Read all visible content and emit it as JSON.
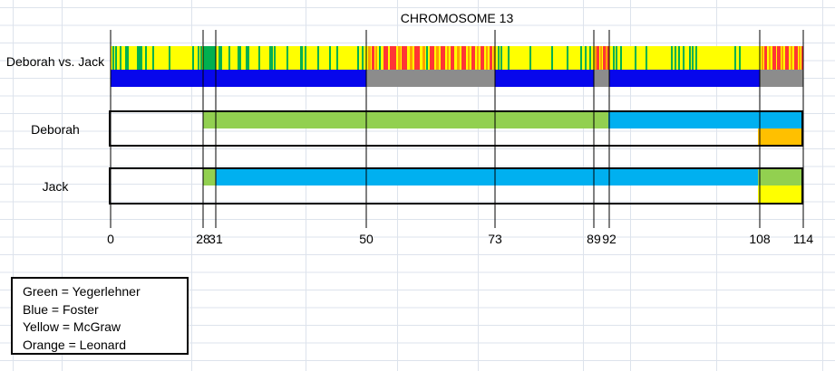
{
  "colors": {
    "yellow": "#FFFF00",
    "green": "#92D050",
    "green_dark": "#00B050",
    "cyan": "#00B0F0",
    "blue": "#0707EC",
    "gray": "#8C8C8C",
    "orange": "#FFC000",
    "red": "#FF3535",
    "orange_stripe": "#FFA000",
    "white": "#FFFFFF"
  },
  "chart_data": {
    "type": "chromosome_browser_comparison",
    "title": "CHROMOSOME 13",
    "axis_ticks": [
      0,
      28,
      31,
      50,
      73,
      89,
      92,
      108,
      114
    ],
    "axis_map_pct": [
      [
        0,
        0
      ],
      [
        28,
        13.35
      ],
      [
        31,
        15.18
      ],
      [
        50,
        36.91
      ],
      [
        73,
        55.5
      ],
      [
        89,
        69.76
      ],
      [
        92,
        71.99
      ],
      [
        108,
        93.72
      ],
      [
        114,
        100
      ]
    ],
    "legend_meaning": {
      "green": "Yegerlehner",
      "blue": "Foster",
      "yellow": "McGraw",
      "orange": "Leonard"
    },
    "rows": {
      "comparison": {
        "label": "Deborah vs. Jack",
        "stripe_bar": {
          "base_color": "yellow",
          "segments": [
            {
              "start": 0,
              "end": 28,
              "kind": "match"
            },
            {
              "start": 28,
              "end": 31,
              "kind": "solid_green"
            },
            {
              "start": 31,
              "end": 50,
              "kind": "match"
            },
            {
              "start": 50,
              "end": 73,
              "kind": "nomatch"
            },
            {
              "start": 73,
              "end": 89,
              "kind": "match"
            },
            {
              "start": 89,
              "end": 92,
              "kind": "nomatch"
            },
            {
              "start": 92,
              "end": 108,
              "kind": "match"
            },
            {
              "start": 108,
              "end": 114,
              "kind": "nomatch"
            }
          ],
          "stripes": [
            {
              "v": 0.5,
              "w": 2,
              "c": "g"
            },
            {
              "v": 1.4,
              "w": 2,
              "c": "g"
            },
            {
              "v": 2.7,
              "w": 2,
              "c": "g"
            },
            {
              "v": 4.4,
              "w": 2,
              "c": "g"
            },
            {
              "v": 4.9,
              "w": 2,
              "c": "g"
            },
            {
              "v": 8.0,
              "w": 2,
              "c": "g"
            },
            {
              "v": 8.5,
              "w": 2,
              "c": "g"
            },
            {
              "v": 9.0,
              "w": 2,
              "c": "g"
            },
            {
              "v": 10.4,
              "w": 2,
              "c": "g"
            },
            {
              "v": 12.6,
              "w": 2,
              "c": "g"
            },
            {
              "v": 17.6,
              "w": 2,
              "c": "g"
            },
            {
              "v": 24.7,
              "w": 2,
              "c": "g"
            },
            {
              "v": 26.4,
              "w": 2,
              "c": "g"
            },
            {
              "v": 27.2,
              "w": 2,
              "c": "g"
            },
            {
              "v": 31.3,
              "w": 2,
              "c": "g"
            },
            {
              "v": 31.6,
              "w": 2,
              "c": "g"
            },
            {
              "v": 32.6,
              "w": 2,
              "c": "g"
            },
            {
              "v": 33.7,
              "w": 2,
              "c": "g"
            },
            {
              "v": 34.0,
              "w": 2,
              "c": "g"
            },
            {
              "v": 34.8,
              "w": 2,
              "c": "g"
            },
            {
              "v": 35.0,
              "w": 2,
              "c": "g"
            },
            {
              "v": 36.4,
              "w": 2,
              "c": "g"
            },
            {
              "v": 37.8,
              "w": 2,
              "c": "g"
            },
            {
              "v": 38.0,
              "w": 2,
              "c": "g"
            },
            {
              "v": 38.3,
              "w": 2,
              "c": "g"
            },
            {
              "v": 39.9,
              "w": 2,
              "c": "g"
            },
            {
              "v": 41.6,
              "w": 2,
              "c": "g"
            },
            {
              "v": 41.8,
              "w": 2,
              "c": "g"
            },
            {
              "v": 42.2,
              "w": 2,
              "c": "g"
            },
            {
              "v": 43.8,
              "w": 2,
              "c": "g"
            },
            {
              "v": 45.3,
              "w": 2,
              "c": "g"
            },
            {
              "v": 46.2,
              "w": 2,
              "c": "g"
            },
            {
              "v": 48.9,
              "w": 2,
              "c": "g"
            },
            {
              "v": 49.4,
              "w": 2,
              "c": "g"
            },
            {
              "v": 50.3,
              "w": 3,
              "c": "o"
            },
            {
              "v": 51.0,
              "w": 3,
              "c": "r"
            },
            {
              "v": 51.7,
              "w": 2,
              "c": "o"
            },
            {
              "v": 52.3,
              "w": 2,
              "c": "g"
            },
            {
              "v": 53.0,
              "w": 5,
              "c": "r"
            },
            {
              "v": 54.2,
              "w": 7,
              "c": "r"
            },
            {
              "v": 55.6,
              "w": 3,
              "c": "o"
            },
            {
              "v": 56.3,
              "w": 6,
              "c": "r"
            },
            {
              "v": 57.8,
              "w": 3,
              "c": "o"
            },
            {
              "v": 58.6,
              "w": 6,
              "c": "r"
            },
            {
              "v": 60.0,
              "w": 3,
              "c": "o"
            },
            {
              "v": 60.7,
              "w": 2,
              "c": "g"
            },
            {
              "v": 61.3,
              "w": 5,
              "c": "r"
            },
            {
              "v": 62.5,
              "w": 3,
              "c": "o"
            },
            {
              "v": 63.2,
              "w": 5,
              "c": "r"
            },
            {
              "v": 64.4,
              "w": 2,
              "c": "o"
            },
            {
              "v": 65.0,
              "w": 4,
              "c": "r"
            },
            {
              "v": 66.2,
              "w": 3,
              "c": "o"
            },
            {
              "v": 67.0,
              "w": 5,
              "c": "r"
            },
            {
              "v": 68.2,
              "w": 2,
              "c": "o"
            },
            {
              "v": 68.8,
              "w": 4,
              "c": "r"
            },
            {
              "v": 69.8,
              "w": 2,
              "c": "o"
            },
            {
              "v": 70.4,
              "w": 4,
              "c": "r"
            },
            {
              "v": 71.4,
              "w": 2,
              "c": "o"
            },
            {
              "v": 72.0,
              "w": 3,
              "c": "r"
            },
            {
              "v": 72.6,
              "w": 2,
              "c": "o"
            },
            {
              "v": 73.4,
              "w": 2,
              "c": "g"
            },
            {
              "v": 73.9,
              "w": 2,
              "c": "g"
            },
            {
              "v": 75.0,
              "w": 2,
              "c": "g"
            },
            {
              "v": 78.6,
              "w": 2,
              "c": "g"
            },
            {
              "v": 82.1,
              "w": 2,
              "c": "g"
            },
            {
              "v": 84.6,
              "w": 2,
              "c": "g"
            },
            {
              "v": 86.8,
              "w": 2,
              "c": "g"
            },
            {
              "v": 87.6,
              "w": 2,
              "c": "g"
            },
            {
              "v": 88.3,
              "w": 2,
              "c": "g"
            },
            {
              "v": 89.2,
              "w": 2,
              "c": "o"
            },
            {
              "v": 89.6,
              "w": 3,
              "c": "r"
            },
            {
              "v": 90.2,
              "w": 2,
              "c": "o"
            },
            {
              "v": 90.7,
              "w": 3,
              "c": "r"
            },
            {
              "v": 91.3,
              "w": 2,
              "c": "o"
            },
            {
              "v": 91.7,
              "w": 2,
              "c": "r"
            },
            {
              "v": 92.4,
              "w": 2,
              "c": "g"
            },
            {
              "v": 92.7,
              "w": 2,
              "c": "g"
            },
            {
              "v": 93.2,
              "w": 2,
              "c": "g"
            },
            {
              "v": 94.7,
              "w": 2,
              "c": "g"
            },
            {
              "v": 95.9,
              "w": 2,
              "c": "g"
            },
            {
              "v": 98.6,
              "w": 2,
              "c": "g"
            },
            {
              "v": 98.9,
              "w": 2,
              "c": "g"
            },
            {
              "v": 99.3,
              "w": 2,
              "c": "g"
            },
            {
              "v": 99.8,
              "w": 2,
              "c": "g"
            },
            {
              "v": 100.5,
              "w": 2,
              "c": "g"
            },
            {
              "v": 100.8,
              "w": 2,
              "c": "g"
            },
            {
              "v": 101.2,
              "w": 2,
              "c": "g"
            },
            {
              "v": 105.3,
              "w": 2,
              "c": "g"
            },
            {
              "v": 105.8,
              "w": 2,
              "c": "g"
            },
            {
              "v": 108.2,
              "w": 2,
              "c": "o"
            },
            {
              "v": 108.6,
              "w": 3,
              "c": "r"
            },
            {
              "v": 109.2,
              "w": 2,
              "c": "o"
            },
            {
              "v": 109.7,
              "w": 4,
              "c": "r"
            },
            {
              "v": 110.4,
              "w": 4,
              "c": "r"
            },
            {
              "v": 111.0,
              "w": 2,
              "c": "o"
            },
            {
              "v": 111.5,
              "w": 4,
              "c": "r"
            },
            {
              "v": 112.2,
              "w": 2,
              "c": "o"
            },
            {
              "v": 112.7,
              "w": 4,
              "c": "r"
            },
            {
              "v": 113.4,
              "w": 2,
              "c": "o"
            },
            {
              "v": 113.8,
              "w": 2,
              "c": "r"
            }
          ]
        },
        "identity_bar": {
          "segments": [
            {
              "start": 0,
              "end": 50,
              "color": "blue"
            },
            {
              "start": 50,
              "end": 73,
              "color": "gray"
            },
            {
              "start": 73,
              "end": 89,
              "color": "blue"
            },
            {
              "start": 89,
              "end": 92,
              "color": "gray"
            },
            {
              "start": 92,
              "end": 108,
              "color": "blue"
            },
            {
              "start": 108,
              "end": 114,
              "color": "gray"
            }
          ]
        }
      },
      "deborah": {
        "label": "Deborah",
        "top_half": [
          {
            "start": 0,
            "end": 28,
            "color": "white"
          },
          {
            "start": 28,
            "end": 92,
            "color": "green"
          },
          {
            "start": 92,
            "end": 114,
            "color": "cyan"
          }
        ],
        "bottom_half": [
          {
            "start": 0,
            "end": 108,
            "color": "white"
          },
          {
            "start": 108,
            "end": 114,
            "color": "orange"
          }
        ]
      },
      "jack": {
        "label": "Jack",
        "top_half": [
          {
            "start": 0,
            "end": 28,
            "color": "white"
          },
          {
            "start": 28,
            "end": 31,
            "color": "green"
          },
          {
            "start": 31,
            "end": 108,
            "color": "cyan"
          },
          {
            "start": 108,
            "end": 114,
            "color": "green"
          }
        ],
        "bottom_half": [
          {
            "start": 0,
            "end": 108,
            "color": "white"
          },
          {
            "start": 108,
            "end": 114,
            "color": "yellow"
          }
        ]
      }
    }
  },
  "legend": {
    "items": [
      "Green = Yegerlehner",
      "Blue = Foster",
      "Yellow = McGraw",
      "Orange = Leonard"
    ]
  }
}
